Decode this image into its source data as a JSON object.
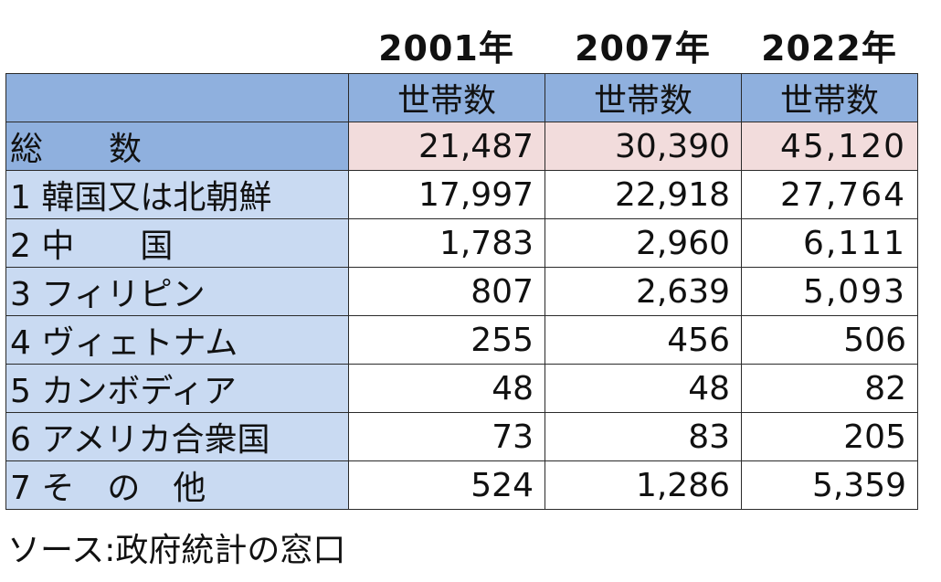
{
  "years": [
    "2001年",
    "2007年",
    "2022年"
  ],
  "column_header": "世帯数",
  "rows": [
    {
      "label": "総　　数",
      "values": [
        "21,487",
        "30,390",
        "45,120"
      ]
    },
    {
      "label": "1  韓国又は北朝鮮",
      "values": [
        "17,997",
        "22,918",
        "27,764"
      ]
    },
    {
      "label": "2  中　　国",
      "values": [
        "1,783",
        "2,960",
        "6,111"
      ]
    },
    {
      "label": "3  フィリピン",
      "values": [
        "807",
        "2,639",
        "5,093"
      ]
    },
    {
      "label": "4  ヴィェトナム",
      "values": [
        "255",
        "456",
        "506"
      ]
    },
    {
      "label": "5  カンボディア",
      "values": [
        "48",
        "48",
        "82"
      ]
    },
    {
      "label": "6  アメリカ合衆国",
      "values": [
        "73",
        "83",
        "205"
      ]
    },
    {
      "label": "7  そ　の　他",
      "values": [
        "524",
        "1,286",
        "5,359"
      ]
    }
  ],
  "source": "ソース:政府統計の窓口",
  "colors": {
    "header_blue": "#8fb0de",
    "label_blue": "#c9daf2",
    "total_pink": "#f2dcdc"
  }
}
